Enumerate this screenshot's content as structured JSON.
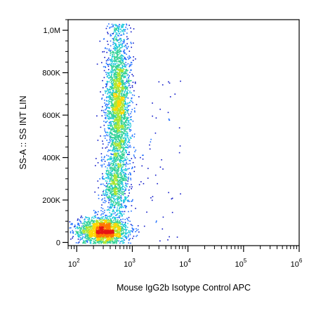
{
  "chart_data": {
    "type": "scatter",
    "style": "flow-cytometry density dot plot",
    "xlabel": "Mouse IgG2b Isotype Control APC",
    "ylabel": "SS-A :: SS INT LIN",
    "x_scale": "log",
    "xlim": [
      70,
      1000000
    ],
    "x_ticks": [
      {
        "value": 100,
        "base": "10",
        "exp": "2"
      },
      {
        "value": 1000,
        "base": "10",
        "exp": "3"
      },
      {
        "value": 10000,
        "base": "10",
        "exp": "4"
      },
      {
        "value": 100000,
        "base": "10",
        "exp": "5"
      },
      {
        "value": 1000000,
        "base": "10",
        "exp": "6"
      }
    ],
    "y_scale": "linear",
    "ylim": [
      -15000,
      1050000
    ],
    "y_ticks": [
      {
        "value": 0,
        "label": "0"
      },
      {
        "value": 200000,
        "label": "200K"
      },
      {
        "value": 400000,
        "label": "400K"
      },
      {
        "value": 600000,
        "label": "600K"
      },
      {
        "value": 800000,
        "label": "800K"
      },
      {
        "value": 1000000,
        "label": "1,0M"
      }
    ],
    "density_colors": [
      "#0a14c8",
      "#1e6eff",
      "#18c8dc",
      "#32d296",
      "#aae632",
      "#ffd700",
      "#ff7800",
      "#e61414"
    ],
    "populations": [
      {
        "name": "low-SS cluster",
        "x_center": 300,
        "y_center": 55000,
        "x_spread_log10": 0.22,
        "y_spread": 30000,
        "share": 0.36
      },
      {
        "name": "high-SS column",
        "x_center": 560,
        "y_center": 650000,
        "x_spread_log10": 0.11,
        "y_spread": 180000,
        "share": 0.5
      },
      {
        "name": "mid-SS bridge",
        "x_center": 500,
        "y_center": 260000,
        "x_spread_log10": 0.13,
        "y_spread": 75000,
        "share": 0.14
      }
    ],
    "grid": false
  }
}
